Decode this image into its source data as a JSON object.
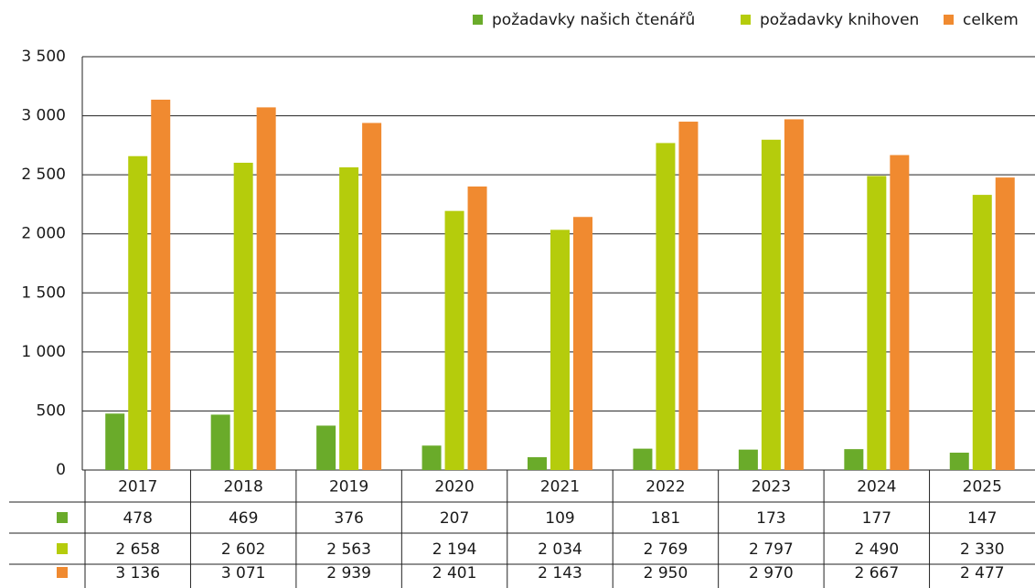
{
  "chart_data": {
    "type": "bar",
    "categories": [
      "2017",
      "2018",
      "2019",
      "2020",
      "2021",
      "2022",
      "2023",
      "2024",
      "2025"
    ],
    "series": [
      {
        "name": "požadavky našich čtenářů",
        "color": "#6aab2a",
        "values": [
          478,
          469,
          376,
          207,
          109,
          181,
          173,
          177,
          147
        ],
        "value_labels": [
          "478",
          "469",
          "376",
          "207",
          "109",
          "181",
          "173",
          "177",
          "147"
        ]
      },
      {
        "name": "požadavky knihoven",
        "color": "#b5cc0c",
        "values": [
          2658,
          2602,
          2563,
          2194,
          2034,
          2769,
          2797,
          2490,
          2330
        ],
        "value_labels": [
          "2 658",
          "2 602",
          "2 563",
          "2 194",
          "2 034",
          "2 769",
          "2 797",
          "2 490",
          "2 330"
        ]
      },
      {
        "name": "celkem",
        "color": "#f08a30",
        "values": [
          3136,
          3071,
          2939,
          2401,
          2143,
          2950,
          2970,
          2667,
          2477
        ],
        "value_labels": [
          "3 136",
          "3 071",
          "2 939",
          "2 401",
          "2 143",
          "2 950",
          "2 970",
          "2 667",
          "2 477"
        ]
      }
    ],
    "ylim": [
      0,
      3500
    ],
    "yticks": [
      0,
      500,
      {
        "value": 1000,
        "label": "1 000"
      },
      {
        "value": 1500,
        "label": "1 500"
      },
      {
        "value": 2000,
        "label": "2 000"
      },
      {
        "value": 2500,
        "label": "2 500"
      },
      {
        "value": 3000,
        "label": "3 000"
      },
      {
        "value": 3500,
        "label": "3 500"
      }
    ],
    "grid": true,
    "legend": "top-right"
  }
}
